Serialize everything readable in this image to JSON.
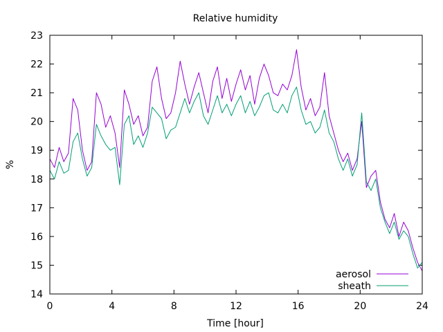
{
  "chart_data": {
    "type": "line",
    "title": "Relative humidity",
    "xlabel": "Time [hour]",
    "ylabel": "%",
    "xlim": [
      0,
      24
    ],
    "ylim": [
      14,
      23
    ],
    "xticks": [
      0,
      4,
      8,
      12,
      16,
      20,
      24
    ],
    "yticks": [
      14,
      15,
      16,
      17,
      18,
      19,
      20,
      21,
      22,
      23
    ],
    "grid": false,
    "legend_position": "bottom-right",
    "series": [
      {
        "name": "aerosol",
        "color": "#9400d3",
        "x": [
          0,
          0.3,
          0.6,
          0.9,
          1.2,
          1.5,
          1.8,
          2.1,
          2.4,
          2.7,
          3.0,
          3.3,
          3.6,
          3.9,
          4.2,
          4.5,
          4.8,
          5.1,
          5.4,
          5.7,
          6.0,
          6.3,
          6.6,
          6.9,
          7.2,
          7.5,
          7.8,
          8.1,
          8.4,
          8.7,
          9.0,
          9.3,
          9.6,
          9.9,
          10.2,
          10.5,
          10.8,
          11.1,
          11.4,
          11.7,
          12.0,
          12.3,
          12.6,
          12.9,
          13.2,
          13.5,
          13.8,
          14.1,
          14.4,
          14.7,
          15.0,
          15.3,
          15.6,
          15.9,
          16.2,
          16.5,
          16.8,
          17.1,
          17.4,
          17.7,
          18.0,
          18.3,
          18.6,
          18.9,
          19.2,
          19.5,
          19.8,
          20.1,
          20.4,
          20.7,
          21.0,
          21.3,
          21.6,
          21.9,
          22.2,
          22.5,
          22.8,
          23.1,
          23.4,
          23.7,
          24.0
        ],
        "values": [
          18.7,
          18.4,
          19.1,
          18.6,
          18.9,
          20.8,
          20.4,
          19.0,
          18.3,
          18.6,
          21.0,
          20.6,
          19.8,
          20.2,
          19.6,
          18.4,
          21.1,
          20.6,
          19.9,
          20.2,
          19.5,
          19.8,
          21.4,
          21.9,
          20.8,
          20.1,
          20.3,
          21.0,
          22.1,
          21.3,
          20.6,
          21.2,
          21.7,
          21.0,
          20.3,
          21.4,
          21.9,
          20.8,
          21.5,
          20.7,
          21.3,
          21.8,
          21.1,
          21.6,
          20.6,
          21.5,
          22.0,
          21.6,
          21.0,
          20.9,
          21.3,
          21.1,
          21.6,
          22.5,
          21.2,
          20.4,
          20.8,
          20.2,
          20.5,
          21.7,
          20.2,
          19.6,
          19.0,
          18.6,
          18.9,
          18.3,
          18.7,
          20.0,
          17.7,
          18.1,
          18.3,
          17.2,
          16.6,
          16.3,
          16.8,
          16.0,
          16.5,
          16.2,
          15.6,
          15.1,
          14.8
        ]
      },
      {
        "name": "sheath",
        "color": "#009e73",
        "x": [
          0,
          0.3,
          0.6,
          0.9,
          1.2,
          1.5,
          1.8,
          2.1,
          2.4,
          2.7,
          3.0,
          3.3,
          3.6,
          3.9,
          4.2,
          4.5,
          4.8,
          5.1,
          5.4,
          5.7,
          6.0,
          6.3,
          6.6,
          6.9,
          7.2,
          7.5,
          7.8,
          8.1,
          8.4,
          8.7,
          9.0,
          9.3,
          9.6,
          9.9,
          10.2,
          10.5,
          10.8,
          11.1,
          11.4,
          11.7,
          12.0,
          12.3,
          12.6,
          12.9,
          13.2,
          13.5,
          13.8,
          14.1,
          14.4,
          14.7,
          15.0,
          15.3,
          15.6,
          15.9,
          16.2,
          16.5,
          16.8,
          17.1,
          17.4,
          17.7,
          18.0,
          18.3,
          18.6,
          18.9,
          19.2,
          19.5,
          19.8,
          20.1,
          20.4,
          20.7,
          21.0,
          21.3,
          21.6,
          21.9,
          22.2,
          22.5,
          22.8,
          23.1,
          23.4,
          23.7,
          24.0
        ],
        "values": [
          18.3,
          18.0,
          18.6,
          18.2,
          18.3,
          19.3,
          19.6,
          18.7,
          18.1,
          18.4,
          19.9,
          19.5,
          19.2,
          19.0,
          19.1,
          17.8,
          19.9,
          20.2,
          19.2,
          19.5,
          19.1,
          19.6,
          20.5,
          20.3,
          20.1,
          19.4,
          19.7,
          19.8,
          20.3,
          20.8,
          20.3,
          20.7,
          21.0,
          20.2,
          19.9,
          20.4,
          20.9,
          20.3,
          20.6,
          20.2,
          20.6,
          20.9,
          20.3,
          20.7,
          20.2,
          20.5,
          20.9,
          21.0,
          20.4,
          20.3,
          20.6,
          20.3,
          20.9,
          21.2,
          20.4,
          19.9,
          20.0,
          19.6,
          19.8,
          20.4,
          19.6,
          19.3,
          18.7,
          18.3,
          18.7,
          18.1,
          18.5,
          20.3,
          17.9,
          17.6,
          18.0,
          17.0,
          16.5,
          16.1,
          16.5,
          15.9,
          16.2,
          16.0,
          15.4,
          14.9,
          15.1
        ]
      }
    ]
  }
}
